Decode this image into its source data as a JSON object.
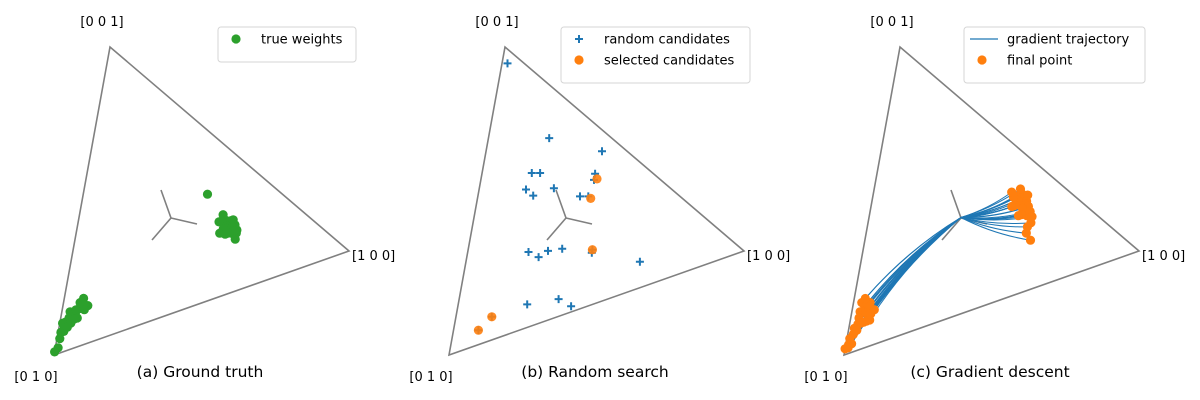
{
  "chart_data": [
    {
      "type": "scatter",
      "caption": "(a) Ground truth",
      "corner_labels": {
        "right": "[1 0 0]",
        "bottom": "[0 1 0]",
        "top": "[0 0 1]"
      },
      "colors": {
        "triangle": "#808080",
        "points": "#2ca02c"
      },
      "legend": [
        {
          "label": "true weights",
          "marker": "circle",
          "color": "#2ca02c"
        }
      ],
      "series": [
        {
          "name": "true weights",
          "marker": "circle",
          "points": [
            [
              0.58,
              0.21
            ],
            [
              0.57,
              0.2
            ],
            [
              0.57,
              0.21
            ],
            [
              0.56,
              0.22
            ],
            [
              0.56,
              0.21
            ],
            [
              0.55,
              0.22
            ],
            [
              0.55,
              0.21
            ],
            [
              0.54,
              0.22
            ],
            [
              0.54,
              0.23
            ],
            [
              0.57,
              0.23
            ],
            [
              0.56,
              0.23
            ],
            [
              0.55,
              0.23
            ],
            [
              0.53,
              0.21
            ],
            [
              0.54,
              0.21
            ],
            [
              0.55,
              0.2
            ],
            [
              0.52,
              0.22
            ],
            [
              0.53,
              0.24
            ],
            [
              0.52,
              0.26
            ],
            [
              0.56,
              0.2
            ],
            [
              0.58,
              0.22
            ],
            [
              0.56,
              0.19
            ],
            [
              0.54,
              0.25
            ],
            [
              0.58,
              0.24
            ],
            [
              0.52,
              0.2
            ],
            [
              0.51,
              0.23
            ],
            [
              0.57,
              0.22
            ],
            [
              0.55,
              0.24
            ],
            [
              0.45,
              0.18
            ],
            [
              0.08,
              0.79
            ],
            [
              0.09,
              0.78
            ],
            [
              0.07,
              0.8
            ],
            [
              0.08,
              0.8
            ],
            [
              0.06,
              0.81
            ],
            [
              0.05,
              0.83
            ],
            [
              0.04,
              0.85
            ],
            [
              0.03,
              0.86
            ],
            [
              0.02,
              0.88
            ],
            [
              0.02,
              0.9
            ],
            [
              0.01,
              0.92
            ],
            [
              0.01,
              0.94
            ],
            [
              0.01,
              0.97
            ],
            [
              0.0,
              0.99
            ],
            [
              0.01,
              0.89
            ],
            [
              0.03,
              0.84
            ],
            [
              0.05,
              0.82
            ],
            [
              0.06,
              0.79
            ],
            [
              0.07,
              0.77
            ],
            [
              0.04,
              0.87
            ],
            [
              0.02,
              0.91
            ],
            [
              0.03,
              0.89
            ],
            [
              0.06,
              0.84
            ],
            [
              0.05,
              0.85
            ]
          ]
        }
      ]
    },
    {
      "type": "scatter",
      "caption": "(b) Random search",
      "corner_labels": {
        "right": "[1 0 0]",
        "bottom": "[0 1 0]",
        "top": "[0 0 1]"
      },
      "colors": {
        "triangle": "#808080",
        "random": "#1f77b4",
        "selected": "#ff7f0e"
      },
      "legend": [
        {
          "label": "random candidates",
          "marker": "plus",
          "color": "#1f77b4"
        },
        {
          "label": "selected candidates",
          "marker": "circle",
          "color": "#ff7f0e"
        }
      ],
      "series": [
        {
          "name": "random candidates",
          "marker": "plus",
          "points": [
            [
              0.02,
              0.04
            ],
            [
              0.22,
              0.15
            ],
            [
              0.42,
              0.06
            ],
            [
              0.41,
              0.14
            ],
            [
              0.4,
              0.22
            ],
            [
              0.37,
              0.24
            ],
            [
              0.27,
              0.28
            ],
            [
              0.18,
              0.29
            ],
            [
              0.45,
              0.36
            ],
            [
              0.63,
              0.28
            ],
            [
              0.2,
              0.35
            ],
            [
              0.34,
              0.43
            ],
            [
              0.29,
              0.47
            ],
            [
              0.26,
              0.51
            ],
            [
              0.41,
              0.57
            ],
            [
              0.36,
              0.58
            ],
            [
              0.17,
              0.35
            ],
            [
              0.22,
              0.52
            ],
            [
              0.21,
              0.27
            ],
            [
              0.13,
              0.79
            ],
            [
              0.09,
              0.86
            ],
            [
              0.25,
              0.67
            ],
            [
              0.45,
              0.37
            ],
            [
              0.41,
              0.16
            ]
          ]
        },
        {
          "name": "selected candidates",
          "marker": "circle",
          "points": [
            [
              0.42,
              0.15
            ],
            [
              0.41,
              0.22
            ],
            [
              0.45,
              0.36
            ],
            [
              0.13,
              0.79
            ],
            [
              0.09,
              0.86
            ]
          ]
        }
      ]
    },
    {
      "type": "scatter",
      "caption": "(c) Gradient descent",
      "corner_labels": {
        "right": "[1 0 0]",
        "bottom": "[0 1 0]",
        "top": "[0 0 1]"
      },
      "colors": {
        "triangle": "#808080",
        "trajectory": "#1f77b4",
        "final": "#ff7f0e"
      },
      "legend": [
        {
          "label": "gradient trajectory",
          "marker": "line",
          "color": "#1f77b4"
        },
        {
          "label": "final point",
          "marker": "circle",
          "color": "#ff7f0e"
        }
      ],
      "start_point": [
        0.333,
        0.333
      ],
      "series": [
        {
          "name": "final point",
          "marker": "circle",
          "points": [
            [
              0.55,
              0.12
            ],
            [
              0.54,
              0.12
            ],
            [
              0.55,
              0.14
            ],
            [
              0.53,
              0.13
            ],
            [
              0.52,
              0.14
            ],
            [
              0.56,
              0.13
            ],
            [
              0.54,
              0.15
            ],
            [
              0.53,
              0.15
            ],
            [
              0.57,
              0.14
            ],
            [
              0.51,
              0.15
            ],
            [
              0.55,
              0.16
            ],
            [
              0.52,
              0.17
            ],
            [
              0.56,
              0.11
            ],
            [
              0.5,
              0.14
            ],
            [
              0.57,
              0.17
            ],
            [
              0.58,
              0.15
            ],
            [
              0.53,
              0.11
            ],
            [
              0.55,
              0.18
            ],
            [
              0.51,
              0.18
            ],
            [
              0.58,
              0.2
            ],
            [
              0.59,
              0.18
            ],
            [
              0.58,
              0.22
            ],
            [
              0.54,
              0.19
            ],
            [
              0.6,
              0.23
            ],
            [
              0.59,
              0.16
            ],
            [
              0.03,
              0.84
            ],
            [
              0.04,
              0.83
            ],
            [
              0.03,
              0.86
            ],
            [
              0.05,
              0.83
            ],
            [
              0.06,
              0.81
            ],
            [
              0.03,
              0.88
            ],
            [
              0.04,
              0.87
            ],
            [
              0.06,
              0.85
            ],
            [
              0.07,
              0.82
            ],
            [
              0.02,
              0.9
            ],
            [
              0.02,
              0.92
            ],
            [
              0.01,
              0.94
            ],
            [
              0.01,
              0.96
            ],
            [
              0.0,
              0.98
            ],
            [
              0.03,
              0.81
            ],
            [
              0.06,
              0.79
            ],
            [
              0.05,
              0.8
            ],
            [
              0.04,
              0.79
            ],
            [
              0.03,
              0.9
            ],
            [
              0.05,
              0.86
            ],
            [
              0.08,
              0.8
            ],
            [
              0.02,
              0.95
            ],
            [
              0.01,
              0.97
            ],
            [
              0.07,
              0.84
            ]
          ]
        }
      ]
    }
  ]
}
